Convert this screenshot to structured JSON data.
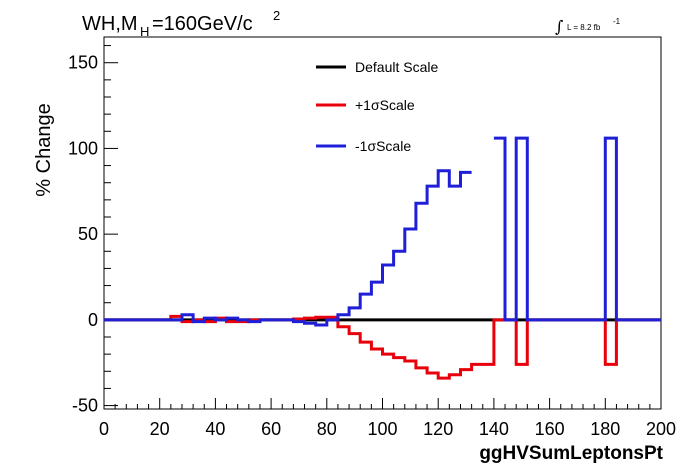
{
  "header": {
    "title_main": "WH,M",
    "title_sub": "H",
    "title_rest": "=160GeV/c",
    "title_sup": "2",
    "lumi_text": "L = 8.2 fb",
    "lumi_sup": "-1",
    "lumi_symbol": "∫"
  },
  "chart_data": {
    "type": "line",
    "title": "WH,MH=160GeV/c 2",
    "xlabel": "ggHVSumLeptonsPt",
    "ylabel": "% Change",
    "xlim": [
      0,
      200
    ],
    "ylim": [
      -52,
      165
    ],
    "x_ticks": [
      "0",
      "20",
      "40",
      "60",
      "80",
      "100",
      "120",
      "140",
      "160",
      "180",
      "200"
    ],
    "y_ticks": [
      "-50",
      "0",
      "50",
      "100",
      "150"
    ],
    "grid": false,
    "legend_position": "top-center",
    "colors": {
      "default": "#000000",
      "plus": "#e8000b",
      "minus": "#1f1fd8"
    },
    "bin_edges": [
      0,
      4,
      8,
      12,
      16,
      20,
      24,
      28,
      32,
      36,
      40,
      44,
      48,
      52,
      56,
      60,
      64,
      68,
      72,
      76,
      80,
      84,
      88,
      92,
      96,
      100,
      104,
      108,
      112,
      116,
      120,
      124,
      128,
      132,
      136,
      140,
      144,
      148,
      152,
      156,
      160,
      164,
      168,
      172,
      176,
      180,
      184,
      188,
      192,
      196,
      200
    ],
    "series": [
      {
        "name": "Default Scale",
        "color": "#000000",
        "values": [
          0,
          0,
          0,
          0,
          0,
          0,
          0,
          0,
          0,
          0,
          0,
          0,
          0,
          0,
          0,
          0,
          0,
          0,
          0,
          0,
          0,
          0,
          0,
          0,
          0,
          0,
          0,
          0,
          0,
          0,
          0,
          0,
          0,
          0,
          0,
          0,
          0,
          0,
          0,
          0,
          0,
          0,
          0,
          0,
          0,
          0,
          0,
          0,
          0,
          0
        ]
      },
      {
        "name": "+1σScale",
        "color": "#e8000b",
        "values": [
          0,
          0,
          0,
          0,
          0,
          0,
          2,
          -1,
          0,
          -1,
          1,
          -1,
          -1,
          0,
          0,
          0,
          0,
          0.5,
          1,
          1.5,
          1.5,
          -4,
          -8,
          -13,
          -17,
          -20,
          -22,
          -24,
          -28,
          -31,
          -34,
          -32,
          -29,
          -26,
          -26,
          0,
          0,
          -26,
          0,
          0,
          0,
          0,
          0,
          0,
          0,
          -26,
          0,
          0,
          0,
          0
        ]
      },
      {
        "name": "-1σScale",
        "color": "#1f1fd8",
        "values": [
          0,
          0,
          0,
          0,
          0,
          0,
          0,
          3,
          -1,
          1,
          0,
          1,
          0,
          -1,
          0,
          0,
          0,
          -1,
          -2,
          -3,
          0,
          3,
          7,
          15,
          22,
          32,
          40,
          53,
          68,
          78,
          87,
          78,
          86,
          null,
          null,
          106,
          0,
          106,
          0,
          0,
          0,
          0,
          0,
          0,
          0,
          106,
          0,
          0,
          0,
          0
        ]
      }
    ]
  }
}
